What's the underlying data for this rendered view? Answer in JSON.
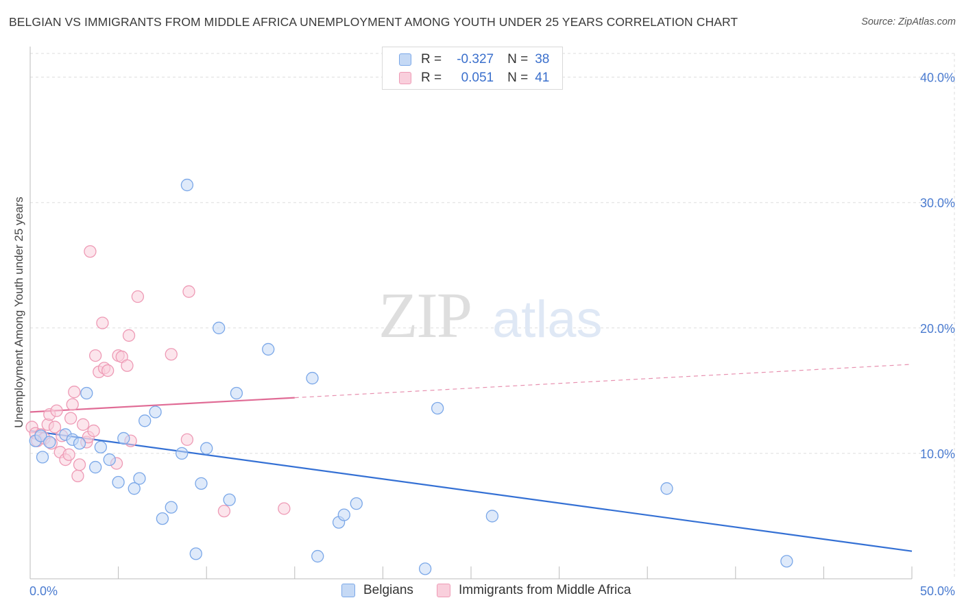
{
  "title": "BELGIAN VS IMMIGRANTS FROM MIDDLE AFRICA UNEMPLOYMENT AMONG YOUTH UNDER 25 YEARS CORRELATION CHART",
  "source": "Source: ZipAtlas.com",
  "watermark": {
    "zip": "ZIP",
    "atlas": "atlas"
  },
  "legend": {
    "rows": [
      {
        "r_label": "R =",
        "r_value": "-0.327",
        "n_label": "N =",
        "n_value": "38"
      },
      {
        "r_label": "R =",
        "r_value": "0.051",
        "n_label": "N =",
        "n_value": "41"
      }
    ]
  },
  "chart_data": {
    "type": "scatter",
    "title": "BELGIAN VS IMMIGRANTS FROM MIDDLE AFRICA UNEMPLOYMENT AMONG YOUTH UNDER 25 YEARS CORRELATION CHART",
    "xlabel": "",
    "ylabel": "Unemployment Among Youth under 25 years",
    "xlim": [
      0,
      50
    ],
    "ylim": [
      0,
      42
    ],
    "x_tick_labels": [
      "0.0%",
      "50.0%"
    ],
    "y_ticks": [
      10,
      20,
      30,
      40
    ],
    "y_tick_labels": [
      "10.0%",
      "20.0%",
      "30.0%",
      "40.0%"
    ],
    "legend_position": "bottom-center",
    "series": [
      {
        "name": "Belgians",
        "color": "#7aa7e8",
        "fill": "#c5d9f5",
        "line_color": "#3470d4",
        "trend": {
          "x": [
            0,
            50
          ],
          "y": [
            11.8,
            2.2
          ],
          "dashed_from": null
        },
        "points": [
          [
            0.3,
            11.0
          ],
          [
            0.6,
            11.4
          ],
          [
            0.7,
            9.7
          ],
          [
            1.1,
            10.9
          ],
          [
            2.0,
            11.5
          ],
          [
            2.4,
            11.1
          ],
          [
            2.8,
            10.8
          ],
          [
            3.2,
            14.8
          ],
          [
            3.7,
            8.9
          ],
          [
            4.0,
            10.5
          ],
          [
            4.5,
            9.5
          ],
          [
            5.0,
            7.7
          ],
          [
            5.3,
            11.2
          ],
          [
            5.9,
            7.2
          ],
          [
            6.2,
            8.0
          ],
          [
            6.5,
            12.6
          ],
          [
            7.1,
            13.3
          ],
          [
            7.5,
            4.8
          ],
          [
            8.0,
            5.7
          ],
          [
            8.6,
            10.0
          ],
          [
            8.9,
            31.4
          ],
          [
            9.4,
            2.0
          ],
          [
            9.7,
            7.6
          ],
          [
            10.0,
            10.4
          ],
          [
            10.7,
            20.0
          ],
          [
            11.3,
            6.3
          ],
          [
            11.7,
            14.8
          ],
          [
            13.5,
            18.3
          ],
          [
            16.0,
            16.0
          ],
          [
            16.3,
            1.8
          ],
          [
            17.5,
            4.5
          ],
          [
            17.8,
            5.1
          ],
          [
            18.5,
            6.0
          ],
          [
            22.4,
            0.8
          ],
          [
            23.1,
            13.6
          ],
          [
            26.2,
            5.0
          ],
          [
            36.1,
            7.2
          ],
          [
            42.9,
            1.4
          ]
        ]
      },
      {
        "name": "Immigrants from Middle Africa",
        "color": "#ee9ab5",
        "fill": "#f9cfdc",
        "line_color": "#e06b95",
        "trend": {
          "x": [
            0,
            50
          ],
          "y": [
            13.3,
            17.1
          ],
          "dashed_from": 15
        },
        "points": [
          [
            0.1,
            12.1
          ],
          [
            0.3,
            11.6
          ],
          [
            0.4,
            11.0
          ],
          [
            0.6,
            11.5
          ],
          [
            0.8,
            11.2
          ],
          [
            1.0,
            12.3
          ],
          [
            1.1,
            13.1
          ],
          [
            1.2,
            10.8
          ],
          [
            1.4,
            12.1
          ],
          [
            1.5,
            13.4
          ],
          [
            1.7,
            10.1
          ],
          [
            1.8,
            11.4
          ],
          [
            2.0,
            9.5
          ],
          [
            2.2,
            9.9
          ],
          [
            2.3,
            12.8
          ],
          [
            2.4,
            13.9
          ],
          [
            2.5,
            14.9
          ],
          [
            2.7,
            8.2
          ],
          [
            2.8,
            9.1
          ],
          [
            3.0,
            12.3
          ],
          [
            3.2,
            10.9
          ],
          [
            3.3,
            11.3
          ],
          [
            3.4,
            26.1
          ],
          [
            3.6,
            11.8
          ],
          [
            3.7,
            17.8
          ],
          [
            3.9,
            16.5
          ],
          [
            4.1,
            20.4
          ],
          [
            4.2,
            16.8
          ],
          [
            4.4,
            16.6
          ],
          [
            4.9,
            9.2
          ],
          [
            5.0,
            17.8
          ],
          [
            5.2,
            17.7
          ],
          [
            5.5,
            17.0
          ],
          [
            5.6,
            19.4
          ],
          [
            5.7,
            11.0
          ],
          [
            6.1,
            22.5
          ],
          [
            8.0,
            17.9
          ],
          [
            8.9,
            11.1
          ],
          [
            9.0,
            22.9
          ],
          [
            11.0,
            5.4
          ],
          [
            14.4,
            5.6
          ]
        ]
      }
    ]
  },
  "bottom_legend": {
    "items": [
      {
        "label": "Belgians"
      },
      {
        "label": "Immigrants from Middle Africa"
      }
    ]
  }
}
